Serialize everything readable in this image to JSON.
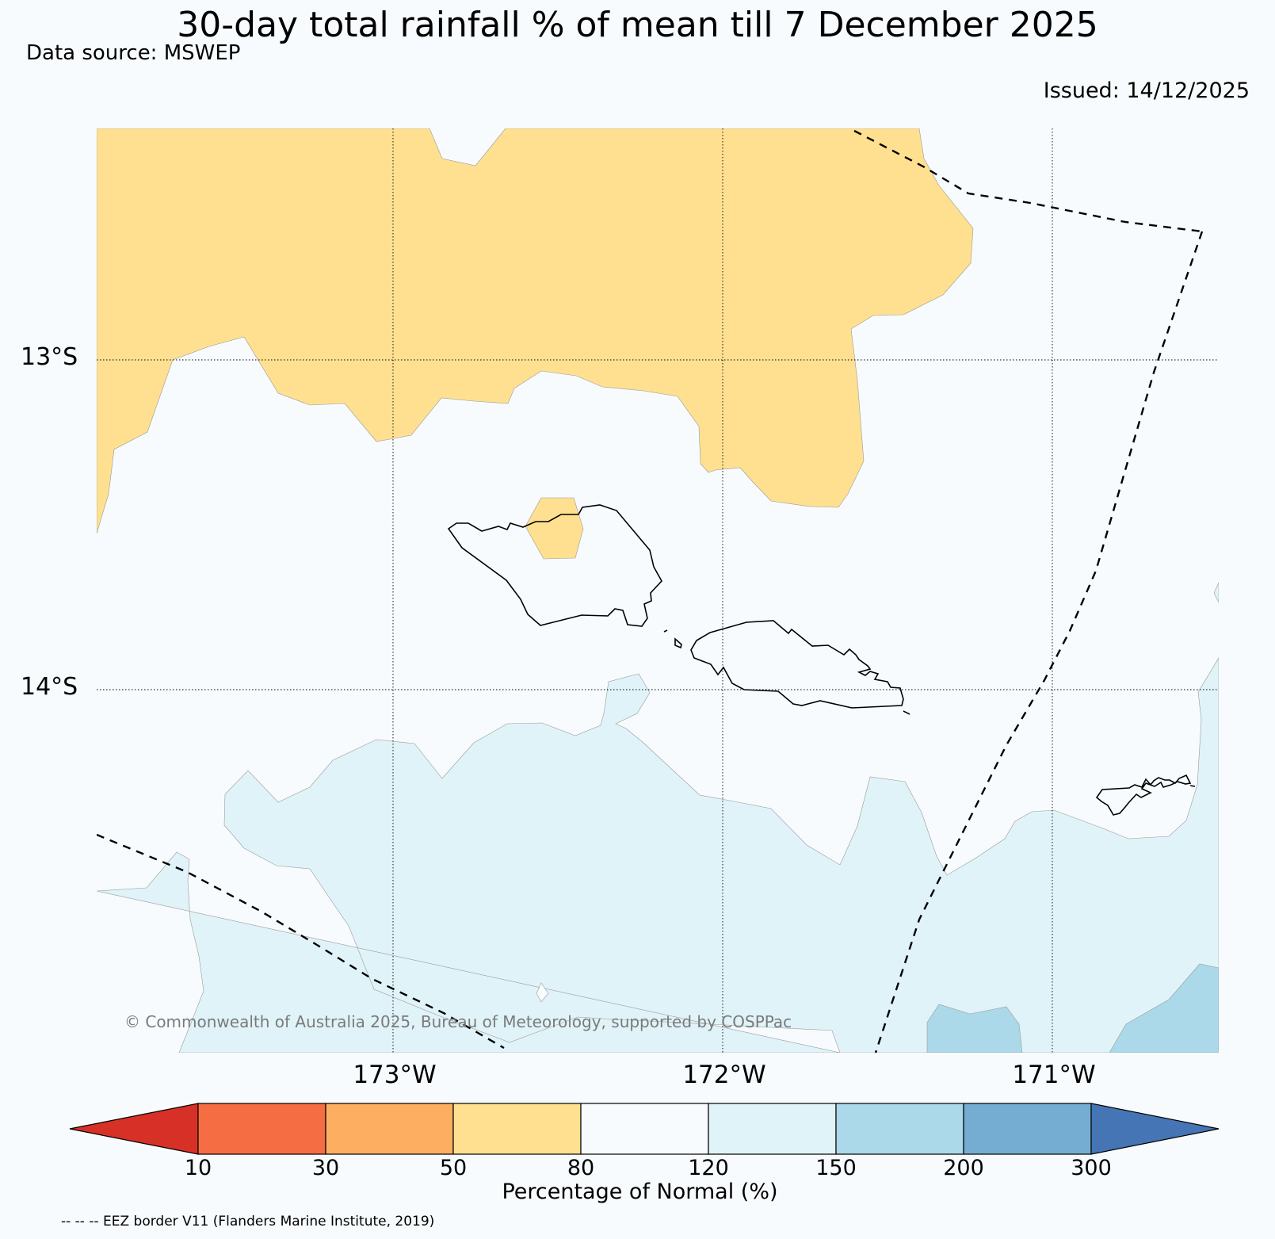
{
  "title": "30-day total rainfall % of mean till 7 December 2025",
  "data_source": "Data source: MSWEP",
  "issued": "Issued: 14/12/2025",
  "latitude_labels": [
    "13°S",
    "14°S"
  ],
  "longitude_labels": [
    "173°W",
    "172°W",
    "171°W"
  ],
  "copyright": "© Commonwealth of Australia 2025, Bureau of Meteorology, supported by COSPPac",
  "colorbar": {
    "label": "Percentage of Normal (%)",
    "ticks": [
      "10",
      "30",
      "50",
      "80",
      "120",
      "150",
      "200",
      "300"
    ],
    "colors": {
      "lt10": "#d73027",
      "10-30": "#f46d43",
      "30-50": "#fdae61",
      "50-80": "#fee090",
      "80-120": "#f7fbfd",
      "120-150": "#e0f3f8",
      "150-200": "#abd9e9",
      "200-300": "#74add1",
      "gt300": "#4575b4"
    }
  },
  "legend_note": "-- -- -- EEZ border V11 (Flanders Marine Institute, 2019)",
  "map_region": "Samoa",
  "colors": {
    "dry": "#fee090",
    "normal": "#f7fbfd",
    "wet1": "#e0f3f8",
    "wet2": "#abd9e9",
    "coastline": "#000000",
    "eez": "#000000"
  }
}
